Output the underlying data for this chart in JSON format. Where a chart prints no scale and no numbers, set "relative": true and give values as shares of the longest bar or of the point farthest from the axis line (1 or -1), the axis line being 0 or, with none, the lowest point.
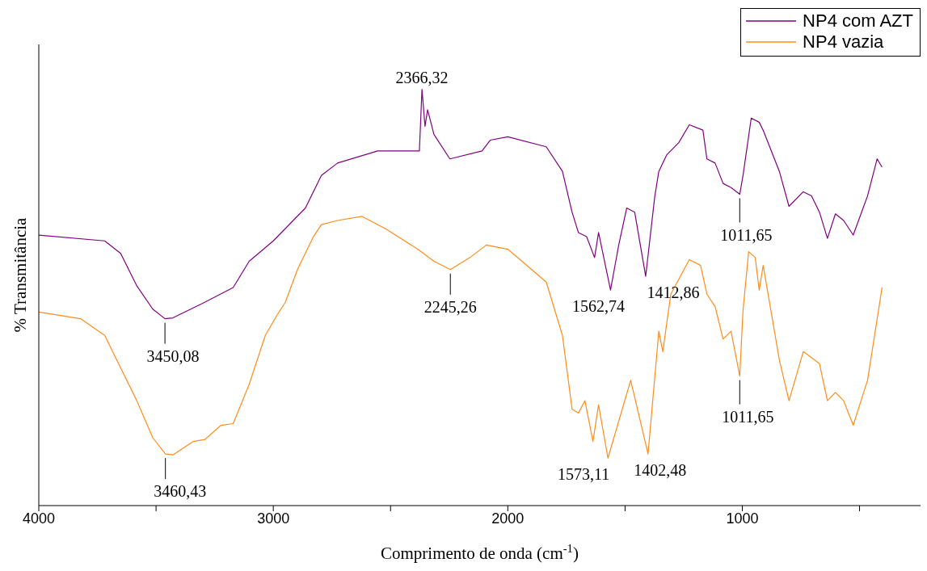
{
  "chart_data": {
    "type": "line",
    "relative": true,
    "xlabel": "Comprimento de onda (cm$^{-1}$)",
    "ylabel": "% Transmitância",
    "xlim": [
      4000,
      240
    ],
    "xticks": [
      4000,
      {
        "value": 3500,
        "label": null
      },
      3000,
      {
        "value": 2500,
        "label": null
      },
      2000,
      {
        "value": 1500,
        "label": null
      },
      1000,
      {
        "value": 500,
        "label": null
      }
    ],
    "legend": "top right",
    "grid": false,
    "marker": "none",
    "line_style": "solid",
    "series": [
      {
        "name": "NP4 com AZT",
        "color": "#800080",
        "x": [
          4000,
          3719,
          3651,
          3582,
          3514,
          3462,
          3428,
          3308,
          3171,
          3103,
          3000,
          2863,
          2795,
          2726,
          2555,
          2418,
          2377,
          2366,
          2353,
          2342,
          2315,
          2247,
          2110,
          2075,
          2000,
          1836,
          1767,
          1726,
          1699,
          1664,
          1630,
          1613,
          1562,
          1527,
          1493,
          1459,
          1412,
          1373,
          1356,
          1322,
          1271,
          1226,
          1168,
          1151,
          1116,
          1082,
          1048,
          1011,
          997,
          962,
          928,
          911,
          842,
          801,
          740,
          705,
          671,
          637,
          603,
          568,
          527,
          466,
          425,
          404
        ],
        "values": [
          0.65,
          0.636,
          0.606,
          0.528,
          0.472,
          0.449,
          0.451,
          0.484,
          0.524,
          0.587,
          0.636,
          0.715,
          0.793,
          0.823,
          0.852,
          0.852,
          0.852,
          1.0,
          0.911,
          0.951,
          0.892,
          0.833,
          0.852,
          0.878,
          0.886,
          0.862,
          0.803,
          0.705,
          0.656,
          0.646,
          0.596,
          0.656,
          0.518,
          0.626,
          0.715,
          0.705,
          0.551,
          0.744,
          0.803,
          0.843,
          0.872,
          0.915,
          0.902,
          0.833,
          0.823,
          0.774,
          0.764,
          0.748,
          0.793,
          0.931,
          0.921,
          0.902,
          0.803,
          0.719,
          0.754,
          0.744,
          0.705,
          0.642,
          0.701,
          0.685,
          0.65,
          0.744,
          0.833,
          0.813
        ]
      },
      {
        "name": "NP4 vazia",
        "color": "#ff8c1a",
        "x": [
          4000,
          3822,
          3719,
          3651,
          3582,
          3514,
          3460,
          3428,
          3342,
          3291,
          3223,
          3171,
          3103,
          3034,
          2983,
          2949,
          2897,
          2829,
          2795,
          2726,
          2623,
          2521,
          2384,
          2315,
          2245,
          2161,
          2092,
          2000,
          1836,
          1767,
          1726,
          1699,
          1671,
          1637,
          1613,
          1573,
          1476,
          1402,
          1356,
          1339,
          1305,
          1226,
          1178,
          1151,
          1116,
          1082,
          1048,
          1011,
          997,
          973,
          945,
          928,
          911,
          842,
          801,
          740,
          671,
          637,
          603,
          568,
          527,
          466,
          404
        ],
        "values": [
          0.465,
          0.449,
          0.409,
          0.331,
          0.252,
          0.163,
          0.124,
          0.122,
          0.154,
          0.159,
          0.193,
          0.197,
          0.291,
          0.409,
          0.459,
          0.488,
          0.567,
          0.646,
          0.675,
          0.685,
          0.695,
          0.665,
          0.616,
          0.587,
          0.567,
          0.596,
          0.626,
          0.616,
          0.537,
          0.409,
          0.232,
          0.222,
          0.252,
          0.154,
          0.242,
          0.114,
          0.301,
          0.124,
          0.419,
          0.37,
          0.508,
          0.591,
          0.577,
          0.508,
          0.478,
          0.4,
          0.419,
          0.311,
          0.469,
          0.61,
          0.596,
          0.518,
          0.577,
          0.35,
          0.252,
          0.37,
          0.341,
          0.252,
          0.272,
          0.252,
          0.193,
          0.301,
          0.524
        ]
      }
    ],
    "annotations": [
      {
        "text": "2366,32",
        "x": 2366,
        "y": 1.0
      },
      {
        "text": "3450,08",
        "x": 3462,
        "y": 0.449
      },
      {
        "text": "1562,74",
        "x": 1562,
        "y": 0.518
      },
      {
        "text": "1412,86",
        "x": 1412,
        "y": 0.551
      },
      {
        "text": "1011,65",
        "x": 1011,
        "y": 0.748
      },
      {
        "text": "3460,43",
        "x": 3460,
        "y": 0.124
      },
      {
        "text": "2245,26",
        "x": 2245,
        "y": 0.567
      },
      {
        "text": "1573,11",
        "x": 1573,
        "y": 0.114
      },
      {
        "text": "1402,48",
        "x": 1402,
        "y": 0.124
      },
      {
        "text": "1011,65",
        "x": 1011,
        "y": 0.311
      }
    ]
  }
}
